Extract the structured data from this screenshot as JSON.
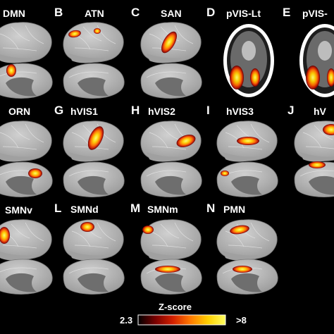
{
  "panels": [
    {
      "letter": "",
      "name": "DMN"
    },
    {
      "letter": "B",
      "name": "ATN"
    },
    {
      "letter": "C",
      "name": "SAN"
    },
    {
      "letter": "D",
      "name": "pVIS-Lt"
    },
    {
      "letter": "E",
      "name": "pVIS-"
    },
    {
      "letter": "",
      "name": "ORN"
    },
    {
      "letter": "G",
      "name": "hVIS1"
    },
    {
      "letter": "H",
      "name": "hVIS2"
    },
    {
      "letter": "I",
      "name": "hVIS3"
    },
    {
      "letter": "J",
      "name": "hV"
    },
    {
      "letter": "",
      "name": "SMNv"
    },
    {
      "letter": "L",
      "name": "SMNd"
    },
    {
      "letter": "M",
      "name": "SMNm"
    },
    {
      "letter": "N",
      "name": "PMN"
    }
  ],
  "colorbar": {
    "title": "Z-score",
    "min_label": "2.3",
    "max_label": ">8",
    "min": 2.3,
    "max": 8,
    "colors": [
      "#000000",
      "#7a0000",
      "#d42000",
      "#ff7a00",
      "#ffd000",
      "#ffff60"
    ]
  },
  "style": {
    "background": "#000000",
    "brain_fill": "#b4b4b4",
    "brain_sulcus": "#8a8a8a",
    "medial_wall": "#6e6e6e",
    "text_color": "#ffffff"
  }
}
